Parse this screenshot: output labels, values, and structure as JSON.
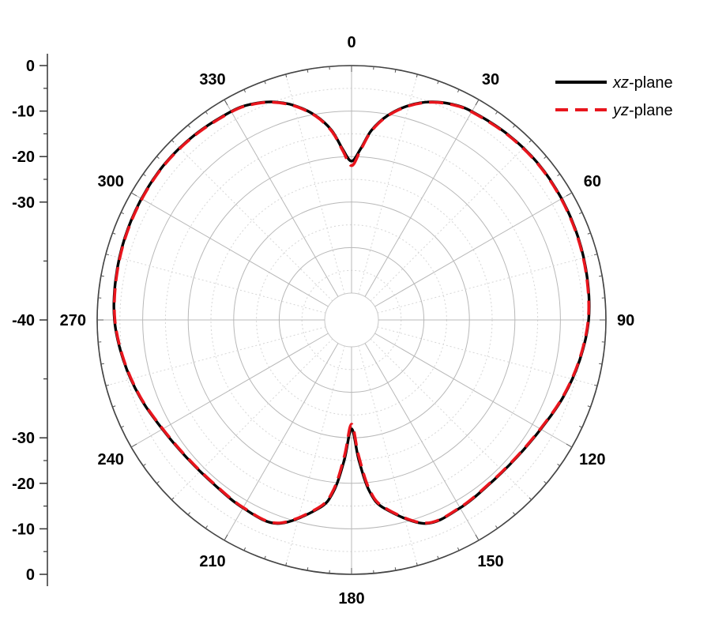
{
  "chart_data": {
    "type": "polar-line",
    "title": "",
    "angular_axis": {
      "ticks": [
        0,
        30,
        60,
        90,
        120,
        150,
        180,
        210,
        240,
        270,
        300,
        330
      ],
      "tick_labels": [
        "0",
        "30",
        "60",
        "90",
        "120",
        "150",
        "180",
        "210",
        "240",
        "270",
        "300",
        "330"
      ],
      "direction": "clockwise",
      "zero_at": "top"
    },
    "radial_axis": {
      "range": [
        -50,
        0
      ],
      "ticks": [
        0,
        -10,
        -20,
        -30,
        -40,
        -30,
        -20,
        -10,
        0
      ],
      "tick_labels": [
        "0",
        "-10",
        "-20",
        "-30",
        "-40",
        "-30",
        "-20",
        "-10",
        "0"
      ],
      "unit": ""
    },
    "grid": true,
    "legend": {
      "position": "top-right"
    },
    "series": [
      {
        "name_italic": "xz",
        "name_rest": "-plane",
        "color": "#000000",
        "style": "solid",
        "theta": [
          0,
          3,
          6,
          10,
          15,
          20,
          25,
          30,
          40,
          50,
          60,
          70,
          80,
          90,
          100,
          110,
          120,
          130,
          140,
          150,
          160,
          170,
          174,
          177,
          180,
          183,
          186,
          190,
          200,
          210,
          220,
          230,
          240,
          250,
          260,
          270,
          280,
          290,
          300,
          310,
          320,
          330,
          335,
          340,
          345,
          350,
          354,
          357,
          360
        ],
        "r": [
          -21.0,
          -18.3,
          -14.0,
          -10.3,
          -7.1,
          -4.9,
          -3.6,
          -3.0,
          -2.6,
          -2.4,
          -2.6,
          -2.9,
          -3.3,
          -3.8,
          -5.0,
          -6.4,
          -7.9,
          -8.7,
          -8.8,
          -8.2,
          -8.3,
          -13.8,
          -18.0,
          -25.0,
          -32.0,
          -25.0,
          -18.0,
          -13.8,
          -8.3,
          -8.2,
          -8.8,
          -8.7,
          -7.9,
          -6.4,
          -5.0,
          -3.8,
          -3.3,
          -2.9,
          -2.6,
          -2.4,
          -2.6,
          -3.0,
          -3.6,
          -4.9,
          -7.1,
          -10.3,
          -14.0,
          -18.3,
          -21.0
        ]
      },
      {
        "name_italic": "yz",
        "name_rest": "-plane",
        "color": "#e8151d",
        "style": "dashed",
        "theta": [
          0,
          3,
          6,
          10,
          15,
          20,
          25,
          30,
          40,
          50,
          60,
          70,
          80,
          90,
          100,
          110,
          120,
          130,
          140,
          150,
          160,
          170,
          174,
          177,
          180,
          183,
          186,
          190,
          200,
          210,
          220,
          230,
          240,
          250,
          260,
          270,
          280,
          290,
          300,
          310,
          320,
          330,
          335,
          340,
          345,
          350,
          354,
          357,
          360
        ],
        "r": [
          -22.0,
          -18.6,
          -14.2,
          -10.4,
          -7.2,
          -5.0,
          -3.7,
          -3.1,
          -2.7,
          -2.5,
          -2.7,
          -3.0,
          -3.4,
          -3.9,
          -5.1,
          -6.5,
          -8.0,
          -8.8,
          -8.9,
          -8.3,
          -8.4,
          -14.0,
          -18.5,
          -26.0,
          -33.0,
          -26.0,
          -18.5,
          -14.0,
          -8.4,
          -8.3,
          -8.9,
          -8.8,
          -8.0,
          -6.5,
          -5.1,
          -3.9,
          -3.4,
          -3.0,
          -2.7,
          -2.5,
          -2.7,
          -3.1,
          -3.7,
          -5.0,
          -7.2,
          -10.4,
          -14.2,
          -18.6,
          -22.0
        ]
      }
    ]
  }
}
